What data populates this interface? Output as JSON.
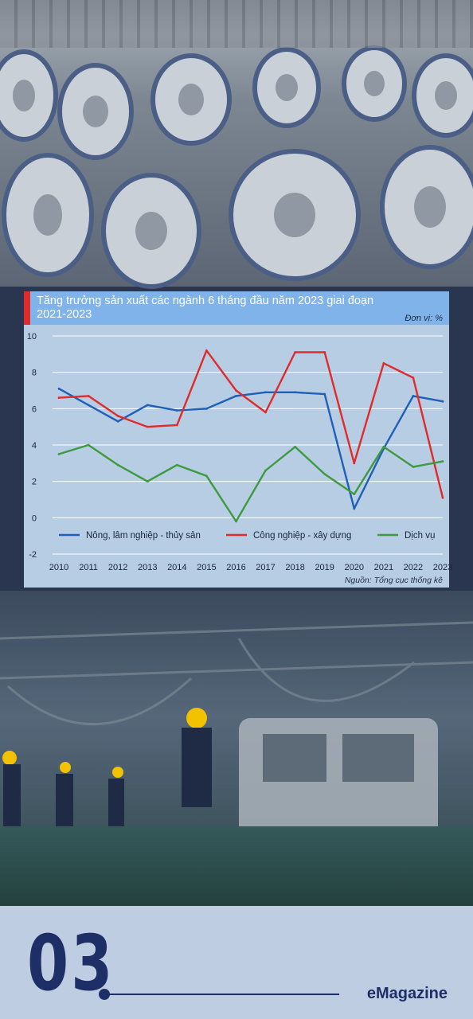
{
  "chart_data": {
    "type": "line",
    "title": "Tăng trưởng sản xuất các ngành 6 tháng đầu năm 2023 giai đoạn 2021-2023",
    "unit": "Đơn vị: %",
    "source": "Nguồn: Tổng cục thống kê",
    "x": [
      2010,
      2011,
      2012,
      2013,
      2014,
      2015,
      2016,
      2017,
      2018,
      2019,
      2020,
      2021,
      2022,
      2023
    ],
    "ylim": [
      -2,
      10
    ],
    "yticks": [
      -2,
      0,
      2,
      4,
      6,
      8,
      10
    ],
    "grid": true,
    "legend_position": "bottom",
    "series": [
      {
        "name": "Nông, lâm nghiệp - thủy sản",
        "color": "#1f5fb8",
        "values": [
          7.1,
          6.2,
          5.3,
          6.2,
          5.9,
          6.0,
          6.7,
          6.9,
          6.9,
          6.8,
          0.5,
          3.8,
          6.7,
          6.4
        ]
      },
      {
        "name": "Công nghiệp - xây dựng",
        "color": "#e02b2b",
        "values": [
          6.6,
          6.7,
          5.6,
          5.0,
          5.1,
          9.2,
          7.0,
          5.8,
          9.1,
          9.1,
          3.0,
          8.5,
          7.7,
          1.1
        ]
      },
      {
        "name": "Dịch vụ",
        "color": "#3f9a3f",
        "values": [
          3.5,
          4.0,
          2.9,
          2.0,
          2.9,
          2.3,
          -0.2,
          2.6,
          3.9,
          2.4,
          1.3,
          3.9,
          2.8,
          3.1
        ]
      }
    ]
  },
  "footer": {
    "section_number": "03",
    "brand": "eMagazine"
  }
}
